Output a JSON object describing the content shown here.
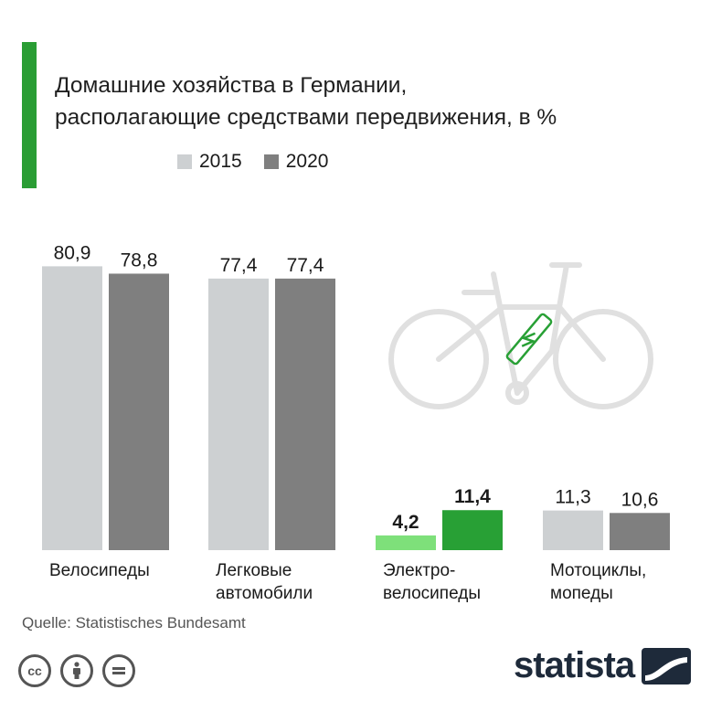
{
  "colors": {
    "accent": "#2a9d34",
    "y2015": "#cdd0d2",
    "y2020": "#7f7f7f",
    "ebike2015": "#7ee07a",
    "ebike2020": "#28a035",
    "bike_icon": "#e0e0e0"
  },
  "header": {
    "title_line1": "Домашние хозяйства в Германии,",
    "title_line2": "располагающие средствами передвижения, в %"
  },
  "legend": [
    {
      "label": "2015"
    },
    {
      "label": "2020"
    }
  ],
  "chart_data": {
    "type": "bar",
    "categories": [
      "Велосипеды",
      "Легковые автомобили",
      "Электро-велосипеды",
      "Мотоциклы, мопеды"
    ],
    "category_lines": [
      [
        "Велосипеды"
      ],
      [
        "Легковые",
        "автомобили"
      ],
      [
        "Электро-",
        "велосипеды"
      ],
      [
        "Мотоциклы,",
        "мопеды"
      ]
    ],
    "series": [
      {
        "name": "2015",
        "values": [
          80.9,
          77.4,
          4.2,
          11.3
        ],
        "labels": [
          "80,9",
          "77,4",
          "4,2",
          "11,3"
        ]
      },
      {
        "name": "2020",
        "values": [
          78.8,
          77.4,
          11.4,
          10.6
        ],
        "labels": [
          "78,8",
          "77,4",
          "11,4",
          "10,6"
        ]
      }
    ],
    "highlight_category_index": 2,
    "ylim": [
      0,
      81
    ],
    "grid": false
  },
  "footer": {
    "source": "Quelle: Statistisches Bundesamt",
    "cc_icons": [
      "cc-icon",
      "by-icon",
      "nd-icon"
    ],
    "logo_text": "statista"
  }
}
